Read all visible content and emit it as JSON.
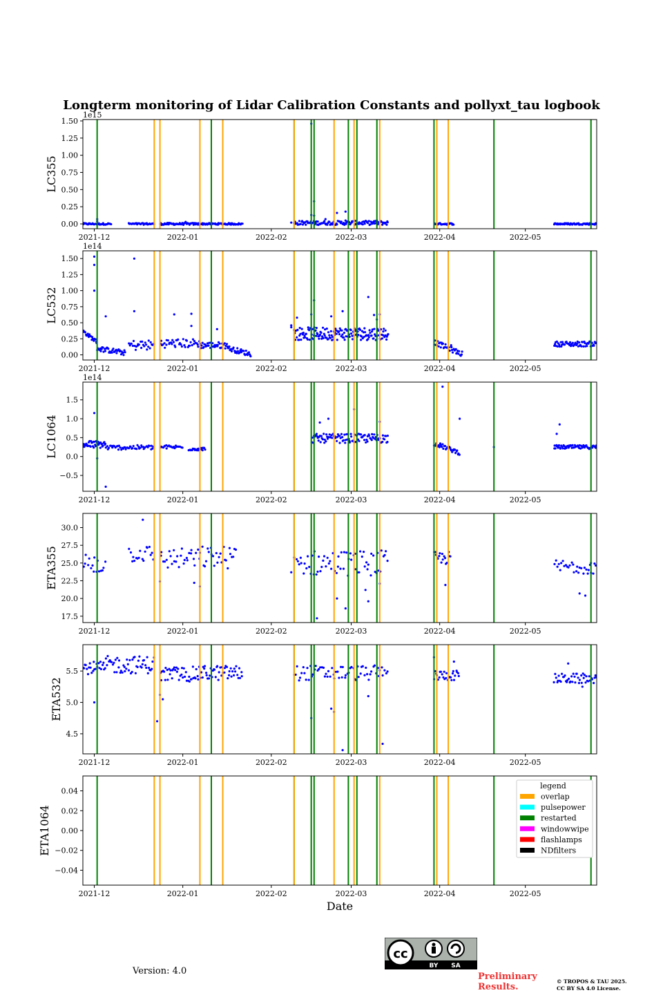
{
  "title": "Longterm monitoring of Lidar Calibration Constants and pollyxt_tau logbook",
  "footer": {
    "version": "Version: 4.0",
    "preliminary_line1": "Preliminary",
    "preliminary_line2": "Results.",
    "copyright_line1": "© TROPOS & TAU 2025.",
    "copyright_line2": "CC BY SA 4.0 License.",
    "cc_logo_by": "BY",
    "cc_logo_sa": "SA"
  },
  "chart_data": {
    "type": "scatter",
    "xlabel": "Date",
    "xlim": [
      "2021-11-27",
      "2022-05-26"
    ],
    "xticks": [
      {
        "date": "2021-12-01",
        "label": "2021-12"
      },
      {
        "date": "2022-01-01",
        "label": "2022-01"
      },
      {
        "date": "2022-02-01",
        "label": "2022-02"
      },
      {
        "date": "2022-03-01",
        "label": "2022-03"
      },
      {
        "date": "2022-04-01",
        "label": "2022-04"
      },
      {
        "date": "2022-05-01",
        "label": "2022-05"
      }
    ],
    "logbook_colors": {
      "overlap": "#ffa500",
      "restarted": "#008000"
    },
    "events": [
      {
        "date": "2021-12-02",
        "type": "restarted"
      },
      {
        "date": "2021-12-22",
        "type": "overlap"
      },
      {
        "date": "2021-12-24",
        "type": "overlap"
      },
      {
        "date": "2022-01-07",
        "type": "overlap"
      },
      {
        "date": "2022-01-11",
        "type": "restarted"
      },
      {
        "date": "2022-01-15",
        "type": "overlap"
      },
      {
        "date": "2022-02-09",
        "type": "restarted"
      },
      {
        "date": "2022-02-09",
        "type": "overlap"
      },
      {
        "date": "2022-02-15",
        "type": "restarted"
      },
      {
        "date": "2022-02-16",
        "type": "restarted"
      },
      {
        "date": "2022-02-23",
        "type": "overlap"
      },
      {
        "date": "2022-02-28",
        "type": "restarted"
      },
      {
        "date": "2022-03-02",
        "type": "overlap"
      },
      {
        "date": "2022-03-03",
        "type": "restarted"
      },
      {
        "date": "2022-03-10",
        "type": "restarted"
      },
      {
        "date": "2022-03-11",
        "type": "overlap"
      },
      {
        "date": "2022-03-30",
        "type": "restarted"
      },
      {
        "date": "2022-03-31",
        "type": "overlap"
      },
      {
        "date": "2022-04-04",
        "type": "overlap"
      },
      {
        "date": "2022-04-20",
        "type": "restarted"
      },
      {
        "date": "2022-05-24",
        "type": "restarted"
      }
    ],
    "legend": {
      "title": "legend",
      "placement": "upper right of ETA1064 panel",
      "entries": [
        {
          "label": "overlap",
          "color": "#ffa500"
        },
        {
          "label": "pulsepower",
          "color": "#00ffff"
        },
        {
          "label": "restarted",
          "color": "#008000"
        },
        {
          "label": "windowwipe",
          "color": "#ff00ff"
        },
        {
          "label": "flashlamps",
          "color": "#ff0000"
        },
        {
          "label": "NDfilters",
          "color": "#000000"
        }
      ]
    },
    "panels": [
      {
        "ylabel": "LC355",
        "offset_text": "1e15",
        "ylim": [
          -0.07,
          1.52
        ],
        "yticks": [
          0,
          0.25,
          0.5,
          0.75,
          1.0,
          1.25,
          1.5
        ],
        "ytick_labels": [
          "0.00",
          "0.25",
          "0.50",
          "0.75",
          "1.00",
          "1.25",
          "1.50"
        ],
        "marker_color": "#0000ff",
        "segments": [
          {
            "start": "2021-11-27",
            "end": "2021-12-07",
            "base": 0.0,
            "spread": 0.012,
            "per_day": 4
          },
          {
            "start": "2021-12-13",
            "end": "2021-12-22",
            "base": 0.0,
            "spread": 0.012,
            "per_day": 4
          },
          {
            "start": "2021-12-24",
            "end": "2022-01-07",
            "base": 0.0,
            "spread": 0.015,
            "per_day": 4
          },
          {
            "start": "2022-01-07",
            "end": "2022-01-22",
            "base": 0.0,
            "spread": 0.012,
            "per_day": 4
          },
          {
            "start": "2022-02-09",
            "end": "2022-03-14",
            "base": 0.015,
            "spread": 0.03,
            "per_day": 4
          },
          {
            "start": "2022-03-30",
            "end": "2022-04-06",
            "base": 0.0,
            "spread": 0.012,
            "per_day": 4
          },
          {
            "start": "2022-05-11",
            "end": "2022-05-26",
            "base": 0.0,
            "spread": 0.012,
            "per_day": 4
          }
        ],
        "points": [
          [
            "2021-12-02",
            0.07
          ],
          [
            "2021-12-02",
            0.04
          ],
          [
            "2022-01-02",
            0.03
          ],
          [
            "2022-02-15",
            1.46
          ],
          [
            "2022-02-16",
            0.33
          ],
          [
            "2022-02-15",
            0.13
          ],
          [
            "2022-02-16",
            0.12
          ],
          [
            "2022-02-20",
            0.07
          ],
          [
            "2022-02-24",
            0.16
          ],
          [
            "2022-02-27",
            0.18
          ],
          [
            "2022-02-27",
            0.05
          ],
          [
            "2022-02-08",
            0.02
          ],
          [
            "2022-03-10",
            0.05
          ],
          [
            "2022-03-09",
            0.04
          ]
        ]
      },
      {
        "ylabel": "LC532",
        "offset_text": "1e14",
        "ylim": [
          -0.08,
          1.62
        ],
        "yticks": [
          0,
          0.25,
          0.5,
          0.75,
          1.0,
          1.25,
          1.5
        ],
        "ytick_labels": [
          "0.00",
          "0.25",
          "0.50",
          "0.75",
          "1.00",
          "1.25",
          "1.50"
        ],
        "marker_color": "#0000ff",
        "segments": [
          {
            "start": "2021-11-27",
            "end": "2021-12-02",
            "base": 0.37,
            "base_end": 0.2,
            "spread": 0.03,
            "per_day": 5
          },
          {
            "start": "2021-12-02",
            "end": "2021-12-12",
            "base": 0.1,
            "base_end": 0.03,
            "spread": 0.04,
            "per_day": 4
          },
          {
            "start": "2021-12-13",
            "end": "2021-12-22",
            "base": 0.15,
            "spread": 0.08,
            "per_day": 3
          },
          {
            "start": "2021-12-24",
            "end": "2022-01-07",
            "base": 0.18,
            "spread": 0.07,
            "per_day": 3
          },
          {
            "start": "2022-01-07",
            "end": "2022-01-17",
            "base": 0.15,
            "spread": 0.05,
            "per_day": 4
          },
          {
            "start": "2022-01-17",
            "end": "2022-01-25",
            "base": 0.1,
            "base_end": 0.01,
            "spread": 0.04,
            "per_day": 4
          },
          {
            "start": "2022-02-09",
            "end": "2022-03-14",
            "base": 0.33,
            "spread": 0.1,
            "per_day": 5
          },
          {
            "start": "2022-03-30",
            "end": "2022-04-09",
            "base": 0.2,
            "base_end": 0.01,
            "spread": 0.04,
            "per_day": 4
          },
          {
            "start": "2022-05-11",
            "end": "2022-05-26",
            "base": 0.17,
            "spread": 0.04,
            "per_day": 4
          }
        ],
        "points": [
          [
            "2021-12-01",
            1.53
          ],
          [
            "2021-12-01",
            1.4
          ],
          [
            "2021-12-01",
            1.0
          ],
          [
            "2021-12-05",
            0.6
          ],
          [
            "2021-12-15",
            1.5
          ],
          [
            "2021-12-15",
            0.68
          ],
          [
            "2022-01-04",
            0.64
          ],
          [
            "2022-01-04",
            0.45
          ],
          [
            "2021-12-29",
            0.63
          ],
          [
            "2022-01-13",
            0.4
          ],
          [
            "2022-02-08",
            0.46
          ],
          [
            "2022-02-08",
            0.43
          ],
          [
            "2022-02-15",
            0.63
          ],
          [
            "2022-02-16",
            0.85
          ],
          [
            "2022-02-26",
            0.68
          ],
          [
            "2022-02-22",
            0.6
          ],
          [
            "2022-03-07",
            0.9
          ],
          [
            "2022-03-09",
            0.62
          ],
          [
            "2022-03-10",
            0.55
          ],
          [
            "2022-03-11",
            0.63
          ],
          [
            "2022-02-10",
            0.58
          ],
          [
            "2022-04-05",
            0.15
          ]
        ]
      },
      {
        "ylabel": "LC1064",
        "offset_text": "1e14",
        "ylim": [
          -0.92,
          1.97
        ],
        "yticks": [
          -0.5,
          0,
          0.5,
          1.0,
          1.5
        ],
        "ytick_labels": [
          "−0.5",
          "0.0",
          "0.5",
          "1.0",
          "1.5"
        ],
        "marker_color": "#0000ff",
        "segments": [
          {
            "start": "2021-11-27",
            "end": "2021-12-05",
            "base": 0.32,
            "spread": 0.1,
            "per_day": 5
          },
          {
            "start": "2021-12-05",
            "end": "2021-12-22",
            "base": 0.24,
            "spread": 0.06,
            "per_day": 3
          },
          {
            "start": "2021-12-24",
            "end": "2022-01-01",
            "base": 0.25,
            "spread": 0.05,
            "per_day": 3
          },
          {
            "start": "2022-01-03",
            "end": "2022-01-09",
            "base": 0.2,
            "spread": 0.04,
            "per_day": 4
          },
          {
            "start": "2022-02-15",
            "end": "2022-03-14",
            "base": 0.48,
            "spread": 0.12,
            "per_day": 4
          },
          {
            "start": "2022-03-30",
            "end": "2022-04-08",
            "base": 0.35,
            "base_end": 0.1,
            "spread": 0.06,
            "per_day": 4
          },
          {
            "start": "2022-05-11",
            "end": "2022-05-26",
            "base": 0.25,
            "spread": 0.05,
            "per_day": 4
          }
        ],
        "points": [
          [
            "2021-12-01",
            1.15
          ],
          [
            "2021-12-02",
            -0.05
          ],
          [
            "2021-12-05",
            -0.8
          ],
          [
            "2022-02-18",
            0.9
          ],
          [
            "2022-02-21",
            1.0
          ],
          [
            "2022-03-02",
            1.25
          ],
          [
            "2022-03-11",
            0.92
          ],
          [
            "2022-04-02",
            1.85
          ],
          [
            "2022-04-08",
            1.0
          ],
          [
            "2022-05-13",
            0.85
          ],
          [
            "2022-05-12",
            0.6
          ],
          [
            "2022-04-20",
            0.25
          ]
        ]
      },
      {
        "ylabel": "ETA355",
        "offset_text": "",
        "ylim": [
          16.6,
          32.0
        ],
        "yticks": [
          17.5,
          20.0,
          22.5,
          25.0,
          27.5,
          30.0
        ],
        "ytick_labels": [
          "17.5",
          "20.0",
          "22.5",
          "25.0",
          "27.5",
          "30.0"
        ],
        "marker_color": "#0000ff",
        "segments": [
          {
            "start": "2021-11-27",
            "end": "2021-12-05",
            "base": 25.0,
            "spread": 1.6,
            "per_day": 2
          },
          {
            "start": "2021-12-13",
            "end": "2021-12-22",
            "base": 26.3,
            "spread": 1.2,
            "per_day": 2
          },
          {
            "start": "2021-12-24",
            "end": "2022-01-07",
            "base": 25.6,
            "spread": 1.5,
            "per_day": 2
          },
          {
            "start": "2022-01-07",
            "end": "2022-01-20",
            "base": 25.8,
            "spread": 1.6,
            "per_day": 2
          },
          {
            "start": "2022-02-09",
            "end": "2022-03-14",
            "base": 25.0,
            "spread": 1.8,
            "per_day": 2
          },
          {
            "start": "2022-03-30",
            "end": "2022-04-05",
            "base": 25.7,
            "spread": 0.9,
            "per_day": 3
          },
          {
            "start": "2022-05-11",
            "end": "2022-05-26",
            "base": 24.5,
            "spread": 1.0,
            "per_day": 2
          }
        ],
        "points": [
          [
            "2021-12-18",
            31.1
          ],
          [
            "2021-12-24",
            22.4
          ],
          [
            "2022-01-07",
            21.7
          ],
          [
            "2022-01-05",
            22.2
          ],
          [
            "2022-02-17",
            17.2
          ],
          [
            "2022-02-24",
            20.0
          ],
          [
            "2022-02-27",
            18.6
          ],
          [
            "2022-03-07",
            19.6
          ],
          [
            "2022-03-06",
            21.2
          ],
          [
            "2022-03-11",
            22.1
          ],
          [
            "2022-04-03",
            21.9
          ],
          [
            "2022-05-22",
            20.4
          ],
          [
            "2022-05-20",
            20.7
          ],
          [
            "2022-02-08",
            23.7
          ],
          [
            "2022-05-24",
            25.0
          ]
        ]
      },
      {
        "ylabel": "ETA532",
        "offset_text": "",
        "ylim": [
          4.18,
          5.92
        ],
        "yticks": [
          4.5,
          5.0,
          5.5
        ],
        "ytick_labels": [
          "4.5",
          "5.0",
          "5.5"
        ],
        "marker_color": "#0000ff",
        "segments": [
          {
            "start": "2021-11-27",
            "end": "2021-12-05",
            "base": 5.55,
            "spread": 0.1,
            "per_day": 3
          },
          {
            "start": "2021-12-05",
            "end": "2021-12-22",
            "base": 5.6,
            "spread": 0.14,
            "per_day": 3
          },
          {
            "start": "2021-12-24",
            "end": "2022-01-07",
            "base": 5.45,
            "spread": 0.12,
            "per_day": 3
          },
          {
            "start": "2022-01-07",
            "end": "2022-01-22",
            "base": 5.47,
            "spread": 0.12,
            "per_day": 3
          },
          {
            "start": "2022-02-09",
            "end": "2022-03-14",
            "base": 5.47,
            "spread": 0.12,
            "per_day": 2
          },
          {
            "start": "2022-03-30",
            "end": "2022-04-08",
            "base": 5.43,
            "spread": 0.08,
            "per_day": 3
          },
          {
            "start": "2022-05-11",
            "end": "2022-05-26",
            "base": 5.38,
            "spread": 0.08,
            "per_day": 3
          }
        ],
        "points": [
          [
            "2021-12-01",
            5.0
          ],
          [
            "2021-12-23",
            4.7
          ],
          [
            "2021-12-25",
            5.05
          ],
          [
            "2021-12-24",
            5.12
          ],
          [
            "2022-02-23",
            4.85
          ],
          [
            "2022-02-22",
            4.9
          ],
          [
            "2022-02-26",
            4.24
          ],
          [
            "2022-03-12",
            4.34
          ],
          [
            "2022-03-07",
            5.1
          ],
          [
            "2022-02-15",
            4.75
          ],
          [
            "2022-03-30",
            5.72
          ],
          [
            "2022-04-06",
            5.65
          ],
          [
            "2022-05-21",
            5.25
          ],
          [
            "2022-05-16",
            5.62
          ]
        ]
      },
      {
        "ylabel": "ETA1064",
        "offset_text": "",
        "ylim": [
          -0.055,
          0.055
        ],
        "yticks": [
          -0.04,
          -0.02,
          0.0,
          0.02,
          0.04
        ],
        "ytick_labels": [
          "−0.04",
          "−0.02",
          "0.00",
          "0.02",
          "0.04"
        ],
        "marker_color": "#0000ff",
        "segments": [],
        "points": [],
        "show_legend": true
      }
    ]
  }
}
